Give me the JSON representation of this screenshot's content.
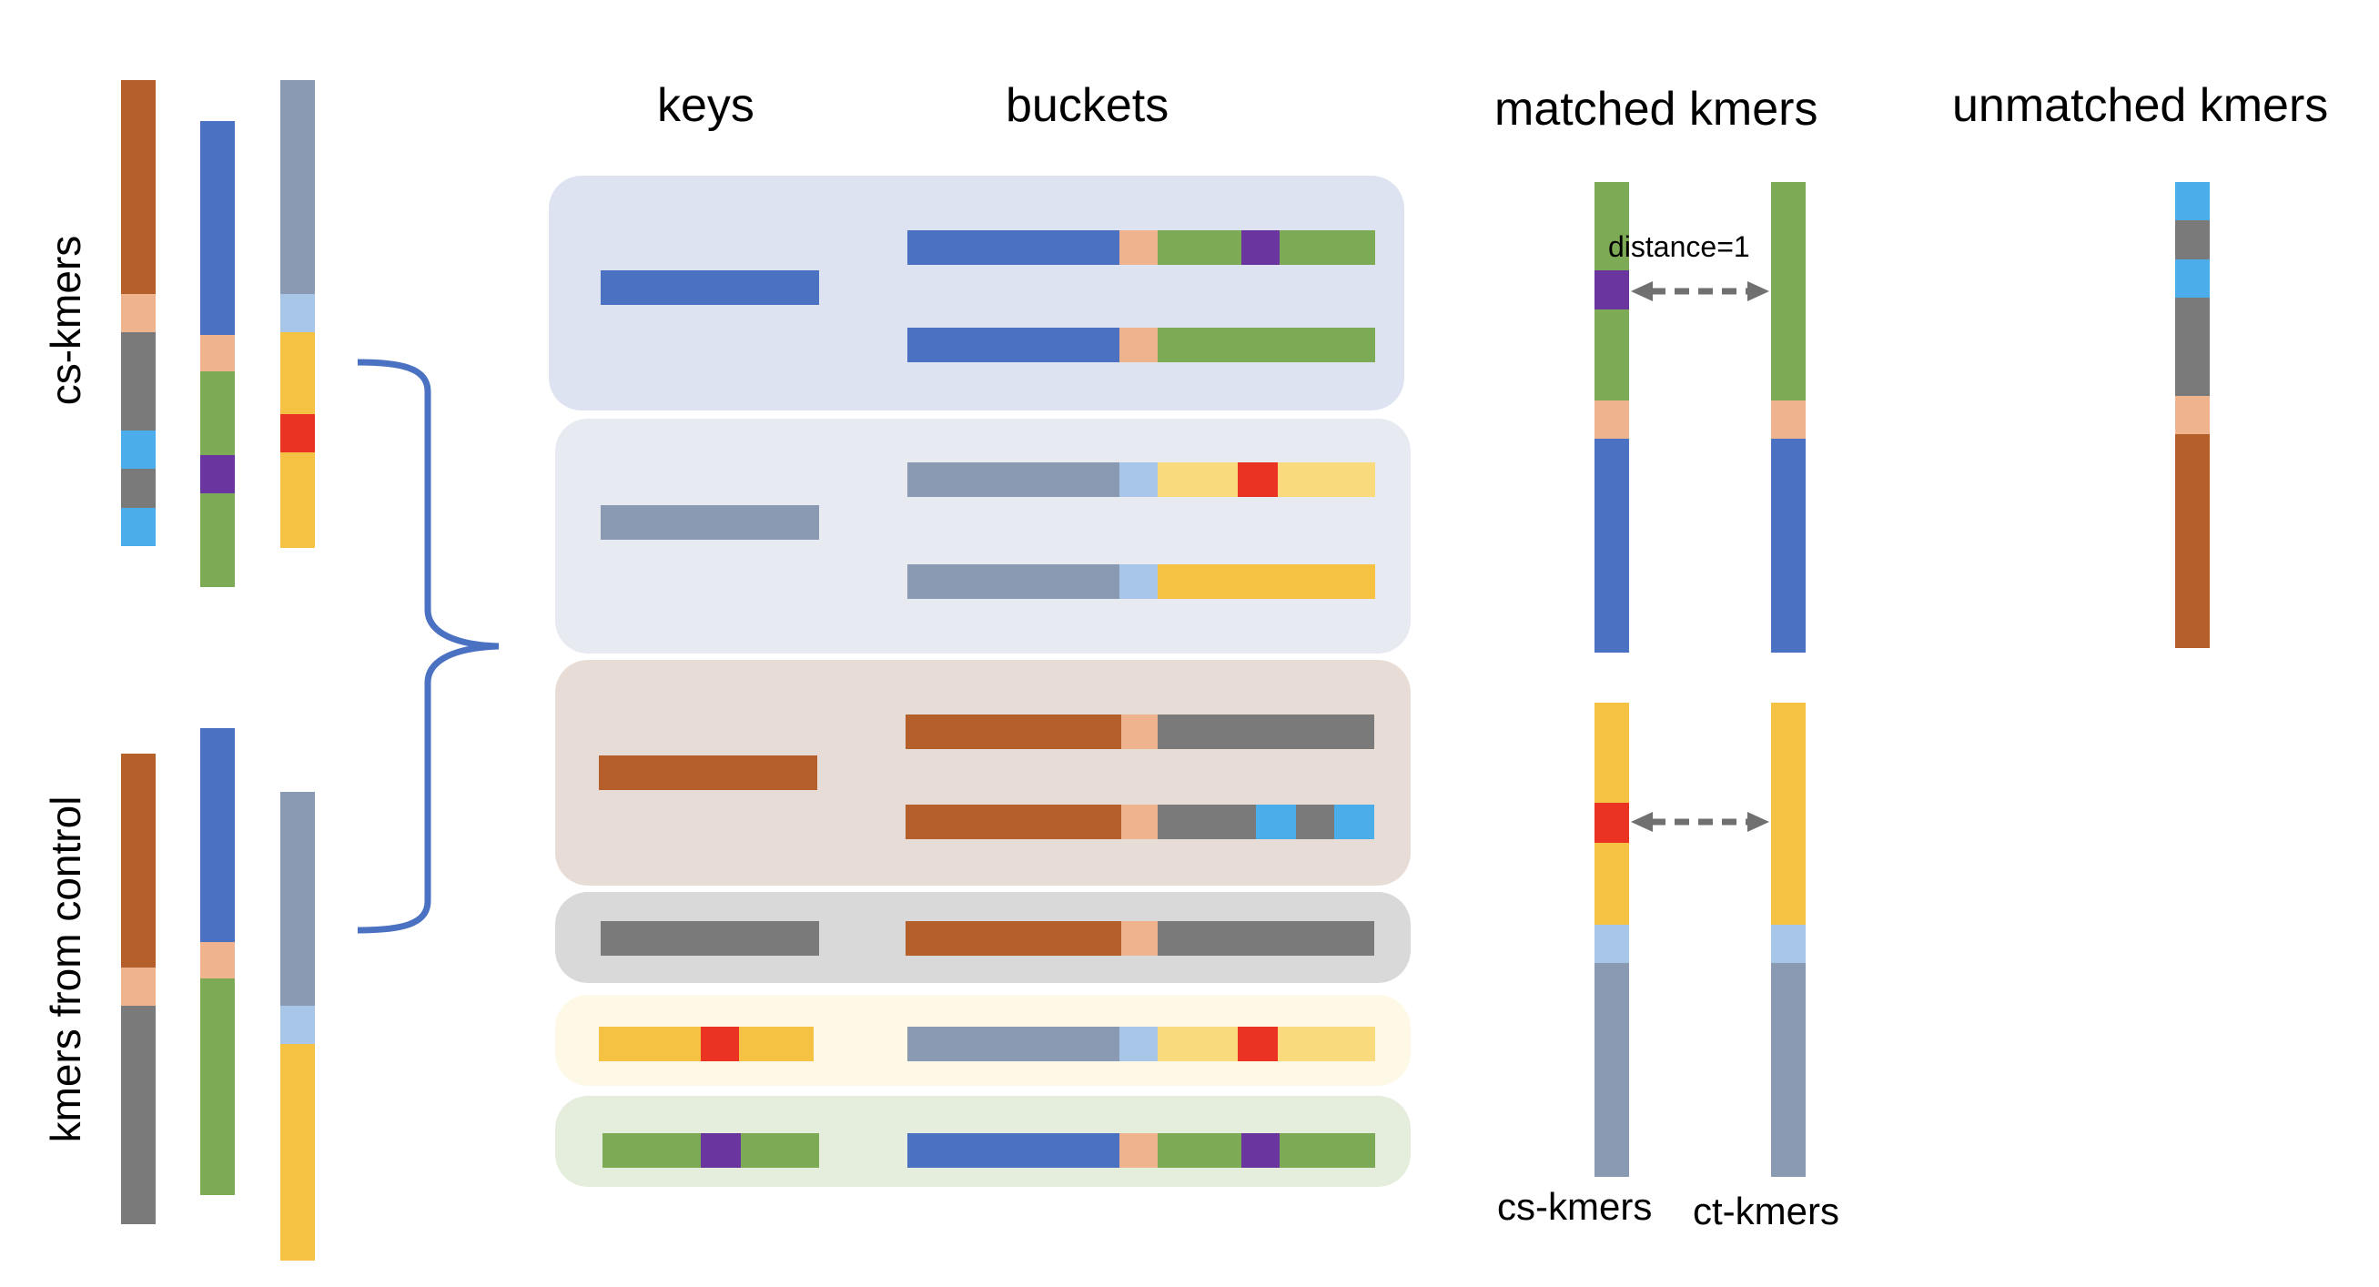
{
  "labels": {
    "keys": "keys",
    "buckets": "buckets",
    "matched": "matched kmers",
    "unmatched": "unmatched kmers",
    "cs_kmers_side": "cs-kmers",
    "control_side": "kmers from control",
    "distance": "distance=1",
    "cs_bottom": "cs-kmers",
    "ct_bottom": "ct-kmers"
  },
  "colors": {
    "blue": "#4A71C2",
    "grayblue": "#8A9AB2",
    "brown": "#B5602B",
    "peach": "#EFB48E",
    "green": "#7DAA55",
    "purple": "#6B35A0",
    "gray": "#7A7A7A",
    "skyblue": "#4BAEEA",
    "lightblue": "#A8C6E8",
    "yellow": "#F6C244",
    "paleyellow": "#F9DA7D",
    "red": "#EB3323",
    "brace": "#4A71C2",
    "arrow": "#707070"
  },
  "buckets": [
    {
      "name": "blue",
      "bg": "#DDE3F1"
    },
    {
      "name": "grayblue",
      "bg": "#E7EAF1"
    },
    {
      "name": "brown",
      "bg": "#E8DDD6"
    },
    {
      "name": "gray",
      "bg": "#D9D9D9"
    },
    {
      "name": "yellow",
      "bg": "#FEF8E6"
    },
    {
      "name": "green",
      "bg": "#E5EEDD"
    }
  ]
}
